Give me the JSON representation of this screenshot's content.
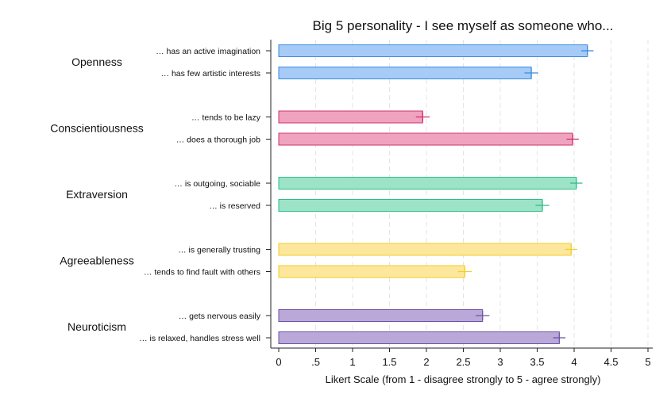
{
  "chart_data": {
    "type": "bar",
    "orientation": "horizontal",
    "title": "Big 5 personality - I see myself as someone who...",
    "xlabel": "Likert Scale (from 1 - disagree strongly to 5 - agree strongly)",
    "xlim": [
      0,
      5
    ],
    "ticks": [
      {
        "value": 0,
        "label": "0"
      },
      {
        "value": 0.5,
        "label": ".5"
      },
      {
        "value": 1,
        "label": "1"
      },
      {
        "value": 1.5,
        "label": "1.5"
      },
      {
        "value": 2,
        "label": "2"
      },
      {
        "value": 2.5,
        "label": "2.5"
      },
      {
        "value": 3,
        "label": "3"
      },
      {
        "value": 3.5,
        "label": "3.5"
      },
      {
        "value": 4,
        "label": "4"
      },
      {
        "value": 4.5,
        "label": "4.5"
      },
      {
        "value": 5,
        "label": "5"
      }
    ],
    "grid": true,
    "groups": [
      {
        "name": "Openness",
        "fill": "#a6cbf7",
        "stroke": "#3d8be0",
        "items": [
          {
            "label": "… has an active imagination",
            "value": 4.18,
            "ci": [
              4.14,
              4.22
            ]
          },
          {
            "label": "… has few artistic interests",
            "value": 3.42,
            "ci": [
              3.37,
              3.47
            ]
          }
        ]
      },
      {
        "name": "Conscientiousness",
        "fill": "#f0a3bf",
        "stroke": "#d0306f",
        "items": [
          {
            "label": "… tends to be lazy",
            "value": 1.95,
            "ci": [
              1.9,
              2.0
            ]
          },
          {
            "label": "… does a thorough job",
            "value": 3.98,
            "ci": [
              3.94,
              4.02
            ]
          }
        ]
      },
      {
        "name": "Extraversion",
        "fill": "#9de3c8",
        "stroke": "#2bbf88",
        "items": [
          {
            "label": "… is outgoing, sociable",
            "value": 4.03,
            "ci": [
              3.99,
              4.07
            ]
          },
          {
            "label": "… is reserved",
            "value": 3.57,
            "ci": [
              3.52,
              3.62
            ]
          }
        ]
      },
      {
        "name": "Agreeableness",
        "fill": "#fde79c",
        "stroke": "#f2cd2a",
        "items": [
          {
            "label": "… is generally trusting",
            "value": 3.96,
            "ci": [
              3.92,
              4.0
            ]
          },
          {
            "label": "… tends to find fault with others",
            "value": 2.52,
            "ci": [
              2.47,
              2.57
            ]
          }
        ]
      },
      {
        "name": "Neuroticism",
        "fill": "#b9a8d8",
        "stroke": "#6f53a8",
        "items": [
          {
            "label": "… gets nervous easily",
            "value": 2.76,
            "ci": [
              2.71,
              2.81
            ]
          },
          {
            "label": "… is relaxed, handles stress well",
            "value": 3.8,
            "ci": [
              3.76,
              3.84
            ]
          }
        ]
      }
    ]
  }
}
